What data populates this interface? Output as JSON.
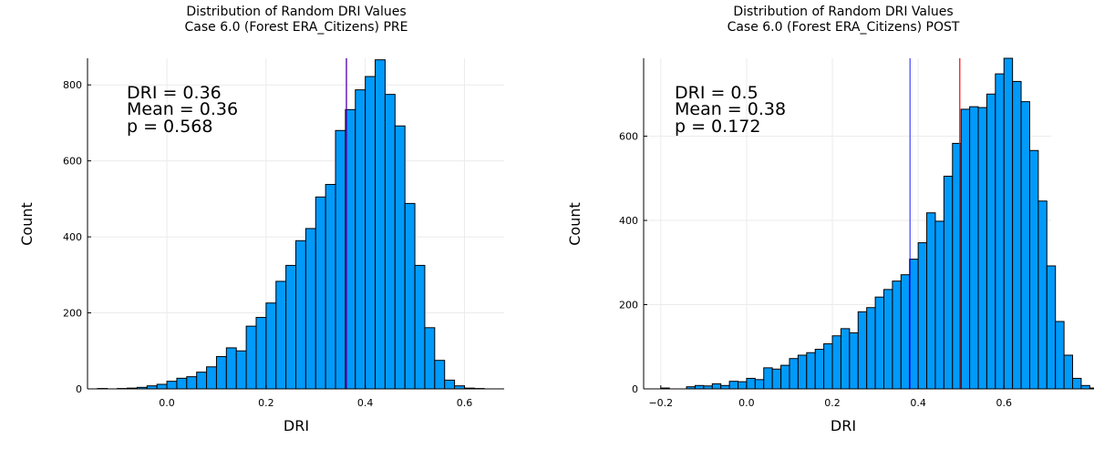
{
  "colors": {
    "bar_fill": "#009AFA",
    "bar_stroke": "#000000",
    "dri_line": "#FF0000",
    "mean_line": "#0000FF",
    "annot_dri": "#FF0000",
    "annot_mean": "#0000FF",
    "annot_p": "#000000",
    "grid": "#ebebeb"
  },
  "chart_data": [
    {
      "type": "bar",
      "title": "Distribution of Random DRI Values",
      "subtitle": "Case 6.0 (Forest ERA_Citizens) PRE",
      "xlabel": "DRI",
      "ylabel": "Count",
      "xlim": [
        -0.16,
        0.68
      ],
      "ylim": [
        0,
        870
      ],
      "xticks": [
        0.0,
        0.2,
        0.4,
        0.6
      ],
      "xtick_labels": [
        "0.0",
        "0.2",
        "0.4",
        "0.6"
      ],
      "yticks": [
        0,
        200,
        400,
        600,
        800
      ],
      "ytick_labels": [
        "0",
        "200",
        "400",
        "600",
        "800"
      ],
      "grid": true,
      "bin_start": -0.14,
      "bin_width": 0.02,
      "values": [
        1,
        0,
        1,
        2,
        4,
        8,
        12,
        20,
        28,
        32,
        44,
        58,
        85,
        108,
        100,
        165,
        188,
        226,
        283,
        325,
        390,
        422,
        505,
        538,
        680,
        735,
        787,
        822,
        866,
        775,
        692,
        488,
        325,
        161,
        75,
        23,
        8,
        2,
        1
      ],
      "dri_value": 0.362,
      "mean_value": 0.362,
      "annotations": {
        "dri": "DRI = 0.36",
        "mean": "Mean = 0.36",
        "p": "p = 0.568"
      }
    },
    {
      "type": "bar",
      "title": "Distribution of Random DRI Values",
      "subtitle": "Case 6.0 (Forest ERA_Citizens) POST",
      "xlabel": "DRI",
      "ylabel": "Count",
      "xlim": [
        -0.24,
        0.71
      ],
      "ylim": [
        0,
        785
      ],
      "xticks": [
        -0.2,
        0.0,
        0.2,
        0.4,
        0.6
      ],
      "xtick_labels": [
        "−0.2",
        "0.0",
        "0.2",
        "0.4",
        "0.6"
      ],
      "yticks": [
        0,
        200,
        400,
        600
      ],
      "ytick_labels": [
        "0",
        "200",
        "400",
        "600"
      ],
      "grid": true,
      "bin_start": -0.2,
      "bin_width": 0.02,
      "values": [
        2,
        0,
        0,
        5,
        8,
        7,
        12,
        8,
        18,
        17,
        25,
        22,
        50,
        47,
        56,
        72,
        80,
        86,
        94,
        107,
        126,
        143,
        133,
        183,
        193,
        218,
        236,
        256,
        271,
        308,
        347,
        418,
        398,
        505,
        583,
        664,
        670,
        668,
        700,
        748,
        785,
        730,
        682,
        566,
        446,
        292,
        160,
        80,
        25,
        8,
        2
      ],
      "dri_value": 0.497,
      "mean_value": 0.381,
      "annotations": {
        "dri": "DRI = 0.5",
        "mean": "Mean = 0.38",
        "p": "p = 0.172"
      }
    }
  ]
}
